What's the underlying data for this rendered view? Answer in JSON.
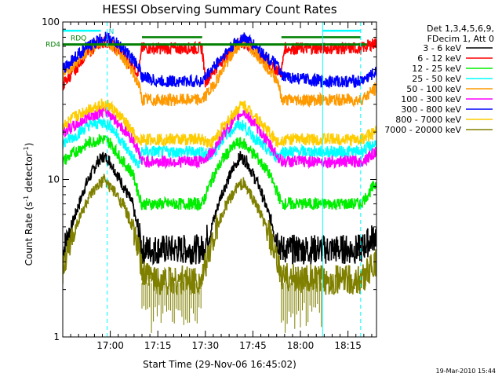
{
  "chart_data": {
    "type": "line",
    "title": "HESSI Observing Summary Count Rates",
    "xlabel": "Start Time (29-Nov-06 16:45:02)",
    "ylabel_main": "Count Rate (s",
    "ylabel_sup1": "-1",
    "ylabel_mid": " detector",
    "ylabel_sup2": "-1",
    "ylabel_end": ")",
    "ylog": true,
    "ylim": [
      1,
      100
    ],
    "xlim_minutes": [
      0,
      99
    ],
    "x_ticks": [
      {
        "label": "17:00",
        "min": 15
      },
      {
        "label": "17:15",
        "min": 30
      },
      {
        "label": "17:30",
        "min": 45
      },
      {
        "label": "17:45",
        "min": 60
      },
      {
        "label": "18:00",
        "min": 75
      },
      {
        "label": "18:15",
        "min": 90
      }
    ],
    "y_ticks": [
      {
        "label": "1",
        "value": 1
      },
      {
        "label": "10",
        "value": 10
      },
      {
        "label": "100",
        "value": 100
      }
    ],
    "legend_header": [
      "Det 1,3,4,5,6,9,",
      "FDecim 1, Att 0"
    ],
    "series": [
      {
        "name": "3 - 6 keV",
        "color": "#000000",
        "points": [
          [
            0,
            3.5
          ],
          [
            4,
            6
          ],
          [
            7,
            9
          ],
          [
            11,
            13
          ],
          [
            13,
            14
          ],
          [
            15,
            13
          ],
          [
            18,
            10
          ],
          [
            22,
            7
          ],
          [
            24,
            4.5
          ],
          [
            25,
            3.6
          ],
          [
            30,
            3.6
          ],
          [
            44,
            3.6
          ],
          [
            47,
            5
          ],
          [
            50,
            8
          ],
          [
            54,
            12
          ],
          [
            56,
            14
          ],
          [
            58,
            13
          ],
          [
            62,
            9
          ],
          [
            65,
            6
          ],
          [
            69,
            3.6
          ],
          [
            72,
            3.6
          ],
          [
            82,
            3.6
          ],
          [
            94,
            3.6
          ],
          [
            99,
            4.5
          ]
        ]
      },
      {
        "name": "6 - 12 keV",
        "color": "#ff0000",
        "points": [
          [
            0,
            40
          ],
          [
            4,
            50
          ],
          [
            7,
            62
          ],
          [
            11,
            72
          ],
          [
            13,
            75
          ],
          [
            15,
            73
          ],
          [
            19,
            62
          ],
          [
            22,
            52
          ],
          [
            24,
            48
          ],
          [
            25,
            68
          ],
          [
            30,
            68
          ],
          [
            44,
            68
          ],
          [
            45,
            42
          ],
          [
            48,
            50
          ],
          [
            52,
            63
          ],
          [
            56,
            73
          ],
          [
            58,
            72
          ],
          [
            62,
            62
          ],
          [
            66,
            52
          ],
          [
            69,
            48
          ],
          [
            70,
            68
          ],
          [
            82,
            68
          ],
          [
            94,
            68
          ],
          [
            99,
            74
          ]
        ]
      },
      {
        "name": "12 - 25 keV",
        "color": "#00ee00",
        "points": [
          [
            0,
            13
          ],
          [
            4,
            15
          ],
          [
            8,
            17
          ],
          [
            12,
            18
          ],
          [
            13,
            18
          ],
          [
            15,
            17
          ],
          [
            19,
            13
          ],
          [
            22,
            11
          ],
          [
            24,
            8
          ],
          [
            25,
            7
          ],
          [
            30,
            7
          ],
          [
            44,
            7
          ],
          [
            47,
            10
          ],
          [
            51,
            14
          ],
          [
            55,
            17
          ],
          [
            57,
            17
          ],
          [
            61,
            14
          ],
          [
            65,
            11
          ],
          [
            68,
            8
          ],
          [
            69,
            7
          ],
          [
            82,
            7
          ],
          [
            94,
            7
          ],
          [
            99,
            9.5
          ]
        ]
      },
      {
        "name": "25 - 50 keV",
        "color": "#00ffff",
        "points": [
          [
            0,
            17
          ],
          [
            4,
            19
          ],
          [
            8,
            22
          ],
          [
            12,
            23
          ],
          [
            13,
            23
          ],
          [
            15,
            22
          ],
          [
            19,
            17
          ],
          [
            22,
            14
          ],
          [
            24,
            12
          ],
          [
            25,
            15
          ],
          [
            30,
            15
          ],
          [
            44,
            15
          ],
          [
            47,
            14
          ],
          [
            51,
            19
          ],
          [
            55,
            22
          ],
          [
            57,
            22
          ],
          [
            61,
            18
          ],
          [
            65,
            15
          ],
          [
            68,
            14
          ],
          [
            69,
            15
          ],
          [
            82,
            15
          ],
          [
            94,
            15
          ],
          [
            99,
            17
          ]
        ]
      },
      {
        "name": "50 - 100 keV",
        "color": "#ff9900",
        "points": [
          [
            0,
            45
          ],
          [
            4,
            55
          ],
          [
            8,
            66
          ],
          [
            12,
            74
          ],
          [
            13,
            75
          ],
          [
            15,
            73
          ],
          [
            19,
            60
          ],
          [
            22,
            48
          ],
          [
            24,
            40
          ],
          [
            25,
            32
          ],
          [
            30,
            32
          ],
          [
            44,
            32
          ],
          [
            47,
            38
          ],
          [
            51,
            52
          ],
          [
            55,
            70
          ],
          [
            57,
            75
          ],
          [
            61,
            64
          ],
          [
            65,
            50
          ],
          [
            68,
            42
          ],
          [
            69,
            32
          ],
          [
            82,
            32
          ],
          [
            94,
            32
          ],
          [
            99,
            38
          ]
        ]
      },
      {
        "name": "100 - 300 keV",
        "color": "#ff00ff",
        "points": [
          [
            0,
            20
          ],
          [
            4,
            22
          ],
          [
            8,
            25
          ],
          [
            12,
            27
          ],
          [
            13,
            27
          ],
          [
            15,
            26
          ],
          [
            19,
            21
          ],
          [
            22,
            18
          ],
          [
            24,
            15
          ],
          [
            25,
            13
          ],
          [
            30,
            13
          ],
          [
            44,
            13
          ],
          [
            47,
            15
          ],
          [
            51,
            20
          ],
          [
            55,
            25
          ],
          [
            57,
            27
          ],
          [
            61,
            22
          ],
          [
            65,
            17
          ],
          [
            68,
            14
          ],
          [
            69,
            13
          ],
          [
            82,
            13
          ],
          [
            94,
            13
          ],
          [
            99,
            15
          ]
        ]
      },
      {
        "name": "300 - 800 keV",
        "color": "#0000ff",
        "points": [
          [
            0,
            50
          ],
          [
            4,
            60
          ],
          [
            8,
            70
          ],
          [
            12,
            78
          ],
          [
            13,
            80
          ],
          [
            15,
            78
          ],
          [
            19,
            68
          ],
          [
            22,
            58
          ],
          [
            24,
            52
          ],
          [
            25,
            45
          ],
          [
            30,
            42
          ],
          [
            44,
            42
          ],
          [
            47,
            50
          ],
          [
            51,
            62
          ],
          [
            55,
            75
          ],
          [
            57,
            80
          ],
          [
            61,
            70
          ],
          [
            65,
            58
          ],
          [
            68,
            52
          ],
          [
            69,
            45
          ],
          [
            82,
            42
          ],
          [
            94,
            42
          ],
          [
            99,
            48
          ]
        ]
      },
      {
        "name": "800 - 7000 keV",
        "color": "#ffcc00",
        "points": [
          [
            0,
            22
          ],
          [
            4,
            25
          ],
          [
            8,
            28
          ],
          [
            12,
            30
          ],
          [
            13,
            30
          ],
          [
            15,
            29
          ],
          [
            19,
            24
          ],
          [
            22,
            20
          ],
          [
            24,
            17
          ],
          [
            25,
            18
          ],
          [
            30,
            18
          ],
          [
            44,
            18
          ],
          [
            47,
            17
          ],
          [
            51,
            22
          ],
          [
            55,
            28
          ],
          [
            57,
            30
          ],
          [
            61,
            25
          ],
          [
            65,
            20
          ],
          [
            68,
            17
          ],
          [
            69,
            18
          ],
          [
            82,
            18
          ],
          [
            94,
            18
          ],
          [
            99,
            20
          ]
        ]
      },
      {
        "name": "7000 - 20000 keV",
        "color": "#808000",
        "points": [
          [
            0,
            2.7
          ],
          [
            4,
            5
          ],
          [
            8,
            7.5
          ],
          [
            12,
            9.5
          ],
          [
            13,
            10
          ],
          [
            15,
            9
          ],
          [
            19,
            7
          ],
          [
            22,
            5
          ],
          [
            24,
            3.5
          ],
          [
            25,
            2.5
          ],
          [
            30,
            2.3
          ],
          [
            44,
            2.3
          ],
          [
            47,
            4
          ],
          [
            51,
            6.5
          ],
          [
            55,
            9
          ],
          [
            57,
            9.5
          ],
          [
            61,
            7
          ],
          [
            65,
            4.5
          ],
          [
            68,
            2.8
          ],
          [
            69,
            2.4
          ],
          [
            82,
            2.3
          ],
          [
            94,
            2.3
          ],
          [
            99,
            3
          ]
        ]
      }
    ],
    "flag_lines": [
      {
        "name": "RD4",
        "color": "#008000",
        "value": 72
      },
      {
        "name": "RDQ",
        "color": "#008000",
        "value": 80
      }
    ],
    "flag_segments": [
      {
        "name": "RDQ-1",
        "color": "#008000",
        "value": 80,
        "from": 25,
        "to": 44
      },
      {
        "name": "RDQ-2",
        "color": "#008000",
        "value": 80,
        "from": 69,
        "to": 94
      },
      {
        "name": "SAA-1",
        "color": "#00ffff",
        "value": 88,
        "from": 0,
        "to": 12
      },
      {
        "name": "SAA-2",
        "color": "#00ffff",
        "value": 88,
        "from": 82,
        "to": 94
      }
    ],
    "vlines": [
      {
        "min": 14,
        "color": "#00ffff",
        "dashed": true
      },
      {
        "min": 82,
        "color": "#00ffff",
        "dashed": false
      },
      {
        "min": 94,
        "color": "#00ffff",
        "dashed": true
      }
    ],
    "flag_labels": [
      {
        "name": "RDQ",
        "text": "RDQ"
      },
      {
        "name": "RD4",
        "text": "RD4"
      },
      {
        "name": "N",
        "text": "N"
      }
    ]
  },
  "footer_date": "19-Mar-2010 15:44"
}
